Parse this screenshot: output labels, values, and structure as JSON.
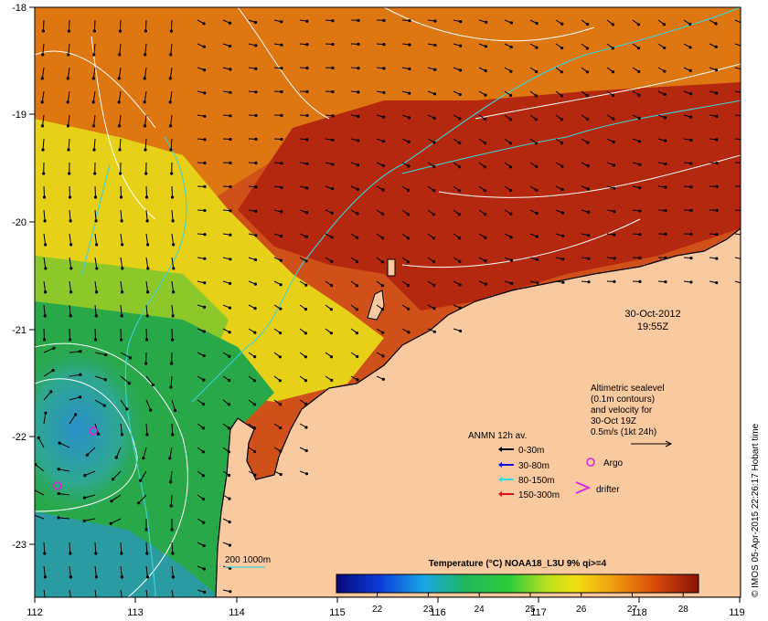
{
  "map": {
    "lon_ticks": [
      "112",
      "113",
      "114",
      "115",
      "116",
      "117",
      "118",
      "119"
    ],
    "lat_ticks": [
      "-18",
      "-19",
      "-20",
      "-21",
      "-22",
      "-23"
    ],
    "colors": {
      "land": "#f9c9a0",
      "sea_warm": "#b82a10",
      "sea_mid": "#e07a10",
      "sea_cool": "#e8d820",
      "sea_green": "#2aa84a",
      "sea_cold": "#2a98b8",
      "isobath": "#3fd3d8",
      "contour": "#ffffff"
    }
  },
  "timestamp": {
    "date": "30-Oct-2012",
    "time": "19:55Z"
  },
  "altimetry_note": {
    "lines": [
      "Altimetric sealevel",
      "(0.1m contours)",
      "and velocity for",
      "30-Oct 19Z",
      "0.5m/s (1kt 24h)"
    ]
  },
  "anmn_legend": {
    "title": "ANMN 12h av.",
    "items": [
      {
        "label": "0-30m",
        "color": "#000000"
      },
      {
        "label": "30-80m",
        "color": "#1010e0"
      },
      {
        "label": "80-150m",
        "color": "#30e0e0"
      },
      {
        "label": "150-300m",
        "color": "#e01010"
      }
    ]
  },
  "markers": {
    "argo": "Argo",
    "drifter": "drifter"
  },
  "isobath_label": "200  1000m",
  "colorbar": {
    "title": "Temperature (°C) NOAA18_L3U 9% qi>=4",
    "ticks": [
      "22",
      "23",
      "24",
      "25",
      "26",
      "27",
      "28"
    ],
    "min": 21.2,
    "max": 28.3
  },
  "credit": "© IMOS 05-Apr-2015 22:26:17 Hobart time"
}
